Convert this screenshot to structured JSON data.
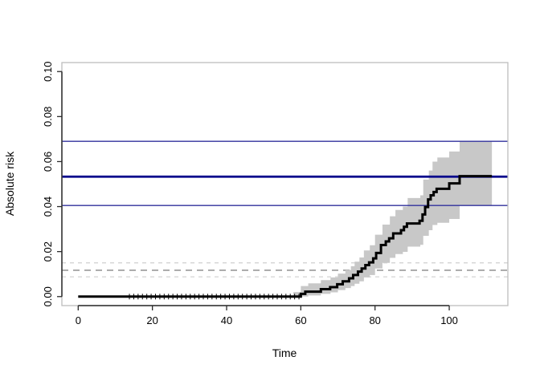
{
  "chart_data": {
    "type": "line",
    "subtype": "step-survival-curve-with-confidence-band",
    "title": "",
    "xlabel": "Time",
    "ylabel": "Absolute risk",
    "xlim": [
      -4.4,
      115.8
    ],
    "ylim": [
      -0.004,
      0.104
    ],
    "grid": false,
    "legend": null,
    "x_ticks": [
      0,
      20,
      40,
      60,
      80,
      100
    ],
    "x_tick_labels": [
      "0",
      "20",
      "40",
      "60",
      "80",
      "100"
    ],
    "y_ticks": [
      0.0,
      0.02,
      0.04,
      0.06,
      0.08,
      0.1
    ],
    "y_tick_labels": [
      "0.00",
      "0.02",
      "0.04",
      "0.06",
      "0.08",
      "0.10"
    ],
    "colors": {
      "curve": "#000000",
      "band": "#c8c8c8",
      "reference_navy": "#00008b",
      "reference_navy_thin": "#30309c",
      "dashed_medium_gray": "#a6a6a6",
      "dashed_light_gray": "#d4d4d4",
      "box": "#bdbdbd",
      "axis": "#2b2b2b"
    },
    "series": [
      {
        "name": "absolute-risk-step-estimate",
        "color": "#000000",
        "width": 3,
        "end_t": 111.5,
        "points": [
          [
            0,
            0.0
          ],
          [
            60.0,
            0.0012
          ],
          [
            61.2,
            0.0022
          ],
          [
            65.4,
            0.0033
          ],
          [
            67.9,
            0.0042
          ],
          [
            69.8,
            0.0055
          ],
          [
            71.3,
            0.0068
          ],
          [
            73.0,
            0.0081
          ],
          [
            74.1,
            0.0096
          ],
          [
            75.4,
            0.0111
          ],
          [
            76.4,
            0.0125
          ],
          [
            77.4,
            0.014
          ],
          [
            78.4,
            0.0152
          ],
          [
            79.5,
            0.017
          ],
          [
            80.3,
            0.0194
          ],
          [
            81.6,
            0.0229
          ],
          [
            82.9,
            0.0245
          ],
          [
            83.8,
            0.0259
          ],
          [
            84.9,
            0.0281
          ],
          [
            87.0,
            0.0295
          ],
          [
            87.8,
            0.031
          ],
          [
            88.6,
            0.0325
          ],
          [
            92.0,
            0.0337
          ],
          [
            92.8,
            0.0365
          ],
          [
            93.5,
            0.0398
          ],
          [
            94.3,
            0.0432
          ],
          [
            95.0,
            0.045
          ],
          [
            95.8,
            0.0465
          ],
          [
            96.6,
            0.0479
          ],
          [
            100.0,
            0.0503
          ],
          [
            102.8,
            0.0535
          ]
        ]
      }
    ],
    "confidence_band": {
      "name": "pointwise-confidence-band",
      "color": "#c8c8c8",
      "end_t": 111.5,
      "points": [
        [
          58.0,
          0.0,
          0.002
        ],
        [
          60.0,
          0.0,
          0.0047
        ],
        [
          62.0,
          0.0005,
          0.0059
        ],
        [
          65.4,
          0.0012,
          0.0073
        ],
        [
          68.0,
          0.0019,
          0.0085
        ],
        [
          70.0,
          0.0029,
          0.0102
        ],
        [
          72.0,
          0.0038,
          0.0118
        ],
        [
          73.5,
          0.0047,
          0.0135
        ],
        [
          74.5,
          0.0057,
          0.0155
        ],
        [
          75.8,
          0.0068,
          0.0174
        ],
        [
          77.0,
          0.0085,
          0.0205
        ],
        [
          78.6,
          0.0096,
          0.0228
        ],
        [
          80.0,
          0.0125,
          0.0275
        ],
        [
          82.0,
          0.015,
          0.032
        ],
        [
          84.0,
          0.0172,
          0.0357
        ],
        [
          85.5,
          0.0189,
          0.0385
        ],
        [
          87.5,
          0.0199,
          0.04
        ],
        [
          88.8,
          0.0222,
          0.0438
        ],
        [
          92.2,
          0.023,
          0.045
        ],
        [
          93.0,
          0.027,
          0.052
        ],
        [
          94.5,
          0.0295,
          0.056
        ],
        [
          95.5,
          0.0318,
          0.06
        ],
        [
          96.8,
          0.0328,
          0.0618
        ],
        [
          100.0,
          0.0345,
          0.0645
        ],
        [
          102.8,
          0.0405,
          0.069
        ]
      ]
    },
    "reference_lines": [
      {
        "name": "dashed-upper-ci-gray",
        "y": 0.015,
        "color": "#d4d4d4",
        "width": 1.3,
        "dash": "5,5",
        "layer": "below"
      },
      {
        "name": "dashed-estimate-gray",
        "y": 0.0117,
        "color": "#a6a6a6",
        "width": 1.9,
        "dash": "8,6",
        "layer": "below"
      },
      {
        "name": "dashed-lower-ci-gray",
        "y": 0.0088,
        "color": "#d4d4d4",
        "width": 1.3,
        "dash": "5,5",
        "layer": "below"
      },
      {
        "name": "navy-upper-ci",
        "y": 0.069,
        "color": "#30309c",
        "width": 1.4,
        "dash": null,
        "layer": "above"
      },
      {
        "name": "navy-estimate",
        "y": 0.0533,
        "color": "#00008b",
        "width": 2.7,
        "dash": null,
        "layer": "above"
      },
      {
        "name": "navy-lower-ci",
        "y": 0.0405,
        "color": "#30309c",
        "width": 1.4,
        "dash": null,
        "layer": "above"
      }
    ],
    "censor_ticks": {
      "name": "censoring-marks",
      "t_start": 13.8,
      "t_end": 59.5,
      "count": 40,
      "value": 0.0,
      "color": "#000000"
    }
  }
}
